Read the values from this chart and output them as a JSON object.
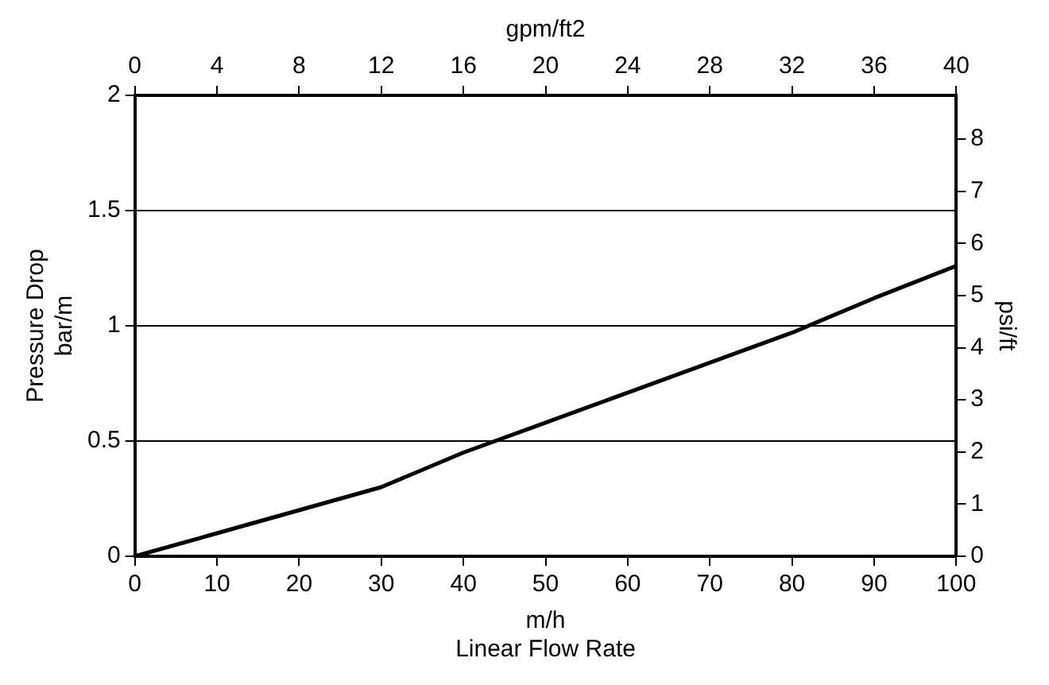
{
  "chart_data": {
    "type": "line",
    "xlabel": "m/h\nLinear Flow Rate",
    "ylabel": "Pressure Drop\nbar/m",
    "y2label": "psi/ft",
    "x2label": "gpm/ft2",
    "x": [
      0,
      10,
      20,
      30,
      40,
      50,
      60,
      70,
      80,
      90,
      100
    ],
    "series": [
      {
        "color": "#000000",
        "values": [
          0,
          0.1,
          0.2,
          0.3,
          0.45,
          0.58,
          0.71,
          0.84,
          0.97,
          1.12,
          1.26
        ]
      }
    ],
    "xlim": [
      0,
      100
    ],
    "xticks": [
      0,
      10,
      20,
      30,
      40,
      50,
      60,
      70,
      80,
      90,
      100
    ],
    "x2lim": [
      0,
      40
    ],
    "x2ticks": [
      0,
      4,
      8,
      12,
      16,
      20,
      24,
      28,
      32,
      36,
      40
    ],
    "ylim": [
      0,
      2
    ],
    "yticks": [
      0,
      0.5,
      1,
      1.5,
      2
    ],
    "y2lim": [
      0,
      8.84
    ],
    "y2ticks": [
      0,
      1,
      2,
      3,
      4,
      5,
      6,
      7,
      8
    ],
    "grid": "y",
    "legend": false,
    "marker": "none",
    "line_style": "solid"
  }
}
